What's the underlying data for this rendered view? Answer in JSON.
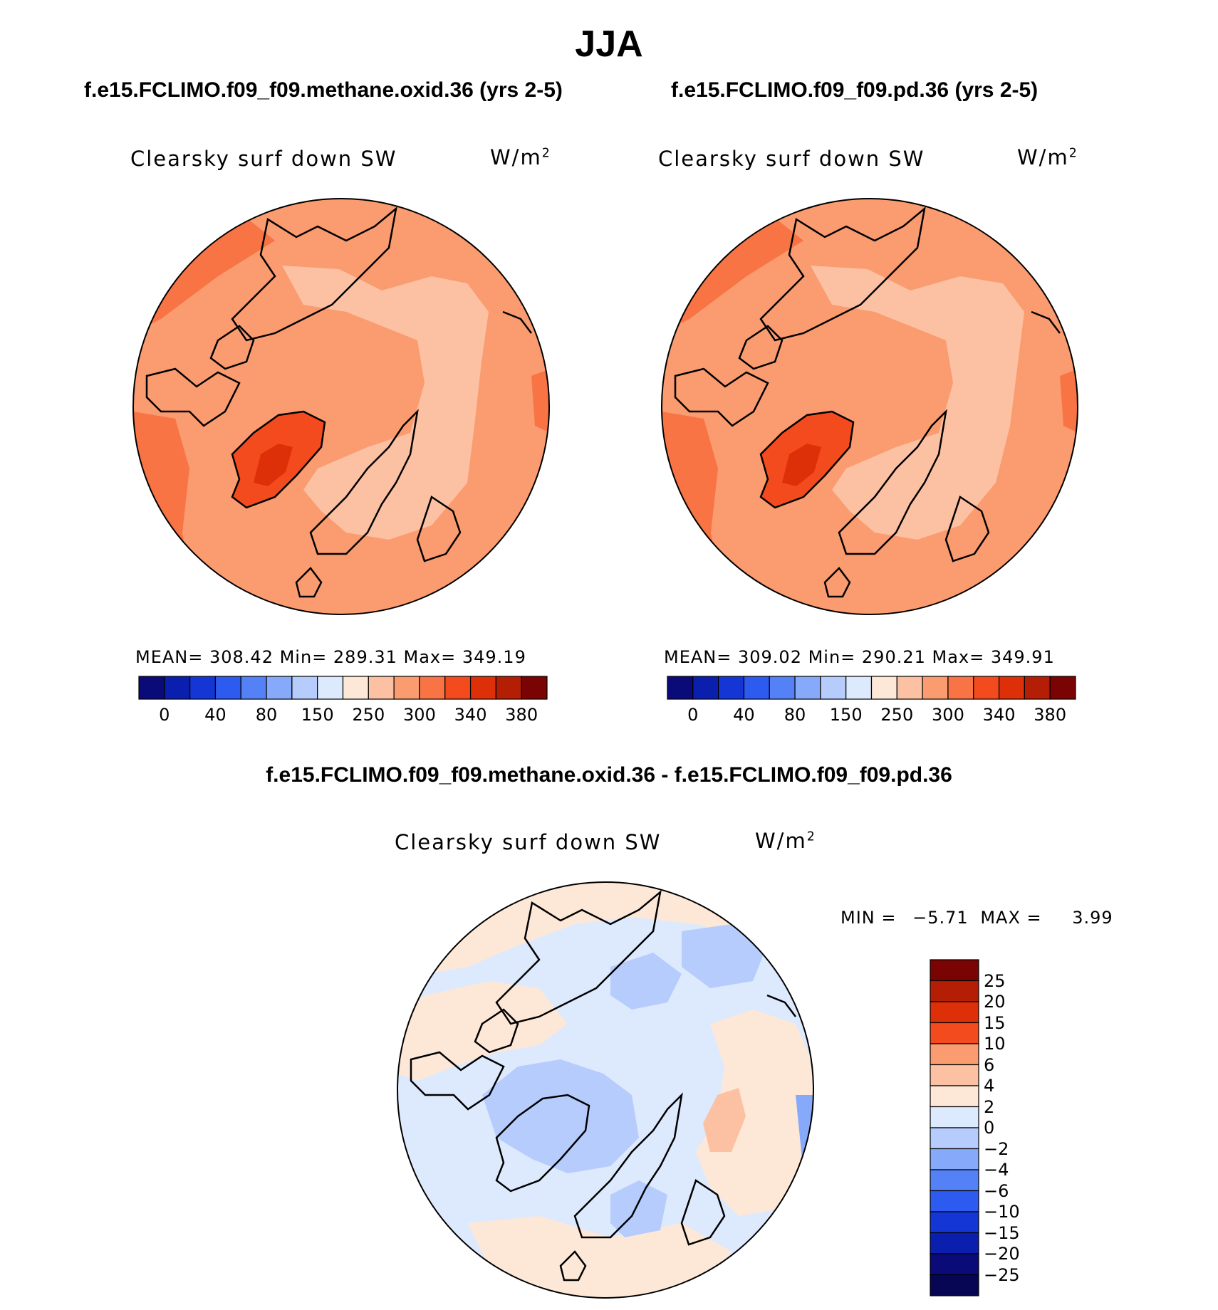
{
  "title": "JJA",
  "panels": [
    {
      "case_title": "f.e15.FCLIMO.f09_f09.methane.oxid.36 (yrs 2-5)",
      "variable": "Clearsky surf down SW",
      "units_base": "W/m",
      "units_exp": "2",
      "stats": "MEAN= 308.42   Min= 289.31   Max= 349.19"
    },
    {
      "case_title": "f.e15.FCLIMO.f09_f09.pd.36 (yrs 2-5)",
      "variable": "Clearsky surf down SW",
      "units_base": "W/m",
      "units_exp": "2",
      "stats": "MEAN= 309.02   Min= 290.21   Max= 349.91"
    }
  ],
  "colorbar_top": {
    "colors": [
      "#0a0a78",
      "#0a1fae",
      "#1436d4",
      "#2d5aef",
      "#5481f6",
      "#86a9fa",
      "#b6ccfc",
      "#dde9fd",
      "#fde8d8",
      "#fcc1a2",
      "#fa9b70",
      "#f87445",
      "#f44b1e",
      "#dd3008",
      "#b31e05",
      "#7a0403"
    ],
    "labels": [
      "0",
      "40",
      "80",
      "150",
      "250",
      "300",
      "340",
      "380"
    ]
  },
  "diff": {
    "title": "f.e15.FCLIMO.f09_f09.methane.oxid.36 - f.e15.FCLIMO.f09_f09.pd.36",
    "variable": "Clearsky surf down SW",
    "units_base": "W/m",
    "units_exp": "2",
    "min_label": "MIN =",
    "min_value": "−5.71",
    "max_label": "MAX =",
    "max_value": "3.99"
  },
  "colorbar_diff": {
    "colors_top_to_bottom": [
      "#7a0403",
      "#b31e05",
      "#dd3008",
      "#f44b1e",
      "#fa9b70",
      "#fcc1a2",
      "#fde8d8",
      "#dde9fd",
      "#b6ccfc",
      "#86a9fa",
      "#5481f6",
      "#2d5aef",
      "#1436d4",
      "#0a1fae",
      "#0a0a78"
    ],
    "labels": [
      "25",
      "20",
      "15",
      "10",
      "6",
      "4",
      "2",
      "0",
      "−2",
      "−4",
      "−6",
      "−10",
      "−15",
      "−20",
      "−25"
    ]
  },
  "map_colors": {
    "base": "#fa9b70",
    "light": "#fcc1a2",
    "dark": "#f87445",
    "darker": "#f44b1e",
    "diff_base": "#dde9fd",
    "diff_warm": "#fde8d8",
    "diff_cool": "#b6ccfc",
    "diff_cooler": "#86a9fa"
  }
}
